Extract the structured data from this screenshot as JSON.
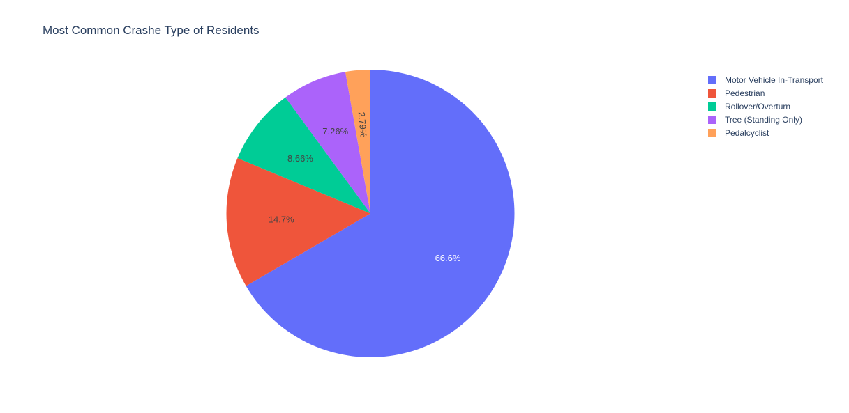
{
  "colors": {
    "title_text": "#2a3f5f",
    "background": "#ffffff"
  },
  "chart_data": {
    "type": "pie",
    "title": "Most Common Crashe Type of Residents",
    "legend_position": "top-right",
    "sort": "descending-clockwise-from-top",
    "slices": [
      {
        "label": "Motor Vehicle In-Transport",
        "value": 66.6,
        "text": "66.6%",
        "color": "#636efa",
        "text_color": "#ffffff"
      },
      {
        "label": "Pedestrian",
        "value": 14.7,
        "text": "14.7%",
        "color": "#ef553b",
        "text_color": "#444444"
      },
      {
        "label": "Rollover/Overturn",
        "value": 8.66,
        "text": "8.66%",
        "color": "#00cc96",
        "text_color": "#444444"
      },
      {
        "label": "Tree (Standing Only)",
        "value": 7.26,
        "text": "7.26%",
        "color": "#ab63fa",
        "text_color": "#444444"
      },
      {
        "label": "Pedalcyclist",
        "value": 2.79,
        "text": "2.79%",
        "color": "#ffa15a",
        "text_color": "#444444"
      }
    ]
  }
}
